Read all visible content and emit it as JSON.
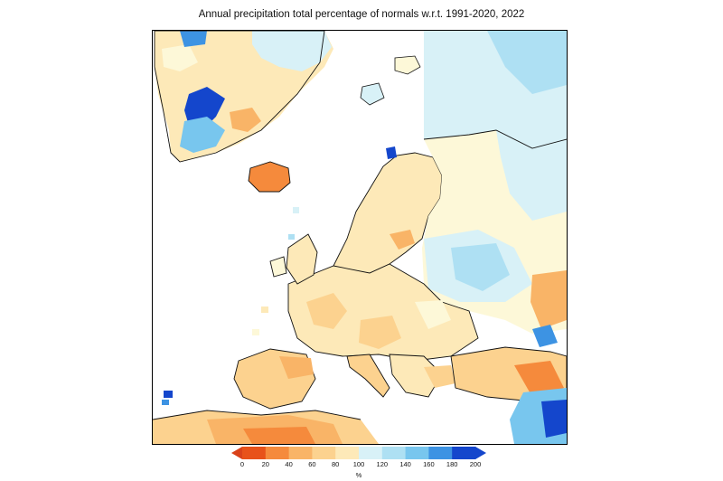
{
  "title": "Annual precipitation total percentage of normals w.r.t. 1991-2020, 2022",
  "legend": {
    "unit": "%",
    "ticks": [
      "0",
      "20",
      "40",
      "60",
      "80",
      "100",
      "120",
      "140",
      "160",
      "180",
      "200"
    ],
    "colors": [
      "#e8521a",
      "#f58a3c",
      "#f9b467",
      "#fcd28f",
      "#fde9b8",
      "#fdf8d8",
      "#d8f1f7",
      "#aee0f3",
      "#78c6ee",
      "#3d93e3",
      "#1446cc"
    ],
    "left_arrow_color": "#d9421a",
    "right_arrow_color": "#1446cc"
  },
  "map": {
    "background": "#ffffff",
    "coastline_color": "#111111"
  }
}
